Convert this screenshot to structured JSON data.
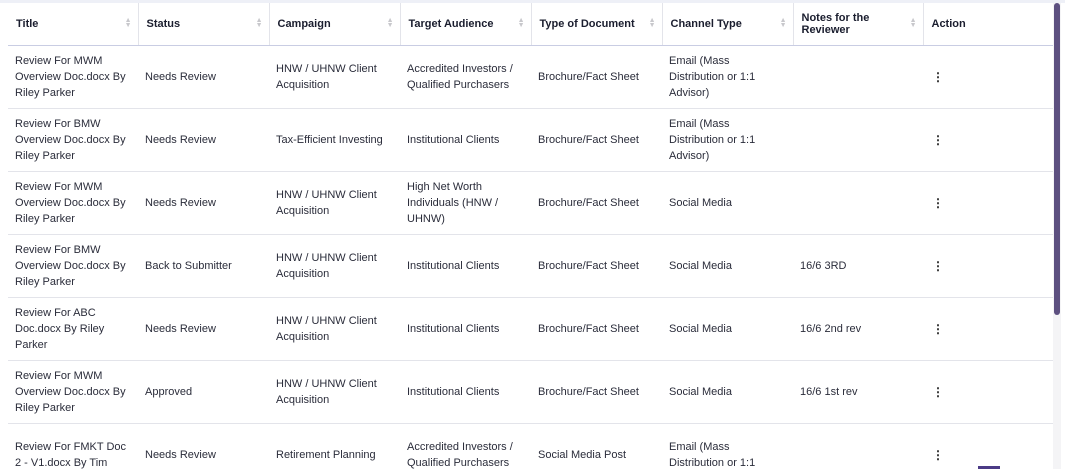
{
  "columns": [
    {
      "label": "Title",
      "sortable": true
    },
    {
      "label": "Status",
      "sortable": true
    },
    {
      "label": "Campaign",
      "sortable": true
    },
    {
      "label": "Target Audience",
      "sortable": true
    },
    {
      "label": "Type of Document",
      "sortable": true
    },
    {
      "label": "Channel Type",
      "sortable": true
    },
    {
      "label": "Notes for the Reviewer",
      "sortable": true
    },
    {
      "label": "Action",
      "sortable": false
    }
  ],
  "rows": [
    {
      "title": "Review For MWM Overview Doc.docx By Riley Parker",
      "status": "Needs Review",
      "campaign": "HNW / UHNW Client Acquisition",
      "audience": "Accredited Investors / Qualified Purchasers",
      "doc_type": "Brochure/Fact Sheet",
      "channel": "Email (Mass Distribution or 1:1 Advisor)",
      "notes": "",
      "action_icon": "kebab-menu-icon"
    },
    {
      "title": "Review For BMW Overview Doc.docx By Riley Parker",
      "status": "Needs Review",
      "campaign": "Tax-Efficient Investing",
      "audience": "Institutional Clients",
      "doc_type": "Brochure/Fact Sheet",
      "channel": "Email (Mass Distribution or 1:1 Advisor)",
      "notes": "",
      "action_icon": "kebab-menu-icon"
    },
    {
      "title": "Review For MWM Overview Doc.docx By Riley Parker",
      "status": "Needs Review",
      "campaign": "HNW / UHNW Client Acquisition",
      "audience": "High Net Worth Individuals (HNW / UHNW)",
      "doc_type": "Brochure/Fact Sheet",
      "channel": "Social Media",
      "notes": "",
      "action_icon": "kebab-menu-icon"
    },
    {
      "title": "Review For BMW Overview Doc.docx By Riley Parker",
      "status": "Back to Submitter",
      "campaign": "HNW / UHNW Client Acquisition",
      "audience": "Institutional Clients",
      "doc_type": "Brochure/Fact Sheet",
      "channel": "Social Media",
      "notes": "16/6 3RD",
      "action_icon": "kebab-menu-icon"
    },
    {
      "title": "Review For ABC Doc.docx By Riley Parker",
      "status": "Needs Review",
      "campaign": "HNW / UHNW Client Acquisition",
      "audience": "Institutional Clients",
      "doc_type": "Brochure/Fact Sheet",
      "channel": "Social Media",
      "notes": "16/6 2nd rev",
      "action_icon": "kebab-menu-icon"
    },
    {
      "title": "Review For MWM Overview Doc.docx By Riley Parker",
      "status": "Approved",
      "campaign": "HNW / UHNW Client Acquisition",
      "audience": "Institutional Clients",
      "doc_type": "Brochure/Fact Sheet",
      "channel": "Social Media",
      "notes": "16/6 1st rev",
      "action_icon": "kebab-menu-icon"
    },
    {
      "title": "Review For FMKT Doc 2 - V1.docx By Tim",
      "status": "Needs Review",
      "campaign": "Retirement Planning",
      "audience": "Accredited Investors / Qualified Purchasers",
      "doc_type": "Social Media Post",
      "channel": "Email (Mass Distribution or 1:1",
      "notes": "",
      "action_icon": "kebab-menu-icon"
    }
  ],
  "colors": {
    "scrollbar_thumb": "#5d5080",
    "header_border": "#c9cde3",
    "accent": "#4b3b86"
  }
}
